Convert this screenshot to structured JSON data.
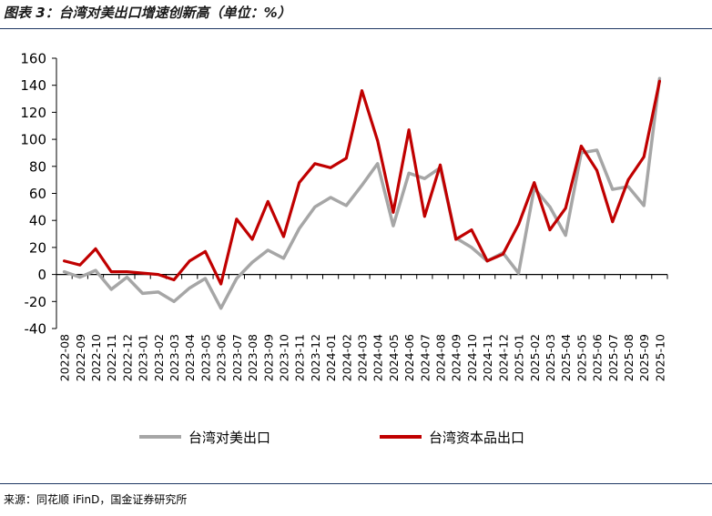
{
  "header": {
    "title": "图表 3：台湾对美出口增速创新高（单位：%）"
  },
  "footer": {
    "source": "来源：同花顺 iFinD，国金证券研究所"
  },
  "colors": {
    "us_exports": "#a6a6a6",
    "capital_goods": "#c00000",
    "axis": "#000000",
    "rule": "#1f3864"
  },
  "chart_data": {
    "type": "line",
    "title": "",
    "xlabel": "",
    "ylabel": "",
    "ylim": [
      -40,
      160
    ],
    "yticks": [
      -40,
      -20,
      0,
      20,
      40,
      60,
      80,
      100,
      120,
      140,
      160
    ],
    "grid": false,
    "legend_position": "bottom",
    "x": [
      "2022-08",
      "2022-09",
      "2022-10",
      "2022-11",
      "2022-12",
      "2023-01",
      "2023-02",
      "2023-03",
      "2023-04",
      "2023-05",
      "2023-06",
      "2023-07",
      "2023-08",
      "2023-09",
      "2023-10",
      "2023-11",
      "2023-12",
      "2024-01",
      "2024-02",
      "2024-03",
      "2024-04",
      "2024-05",
      "2024-06",
      "2024-07",
      "2024-08",
      "2024-09",
      "2024-10",
      "2024-11",
      "2024-12",
      "2025-01",
      "2025-02",
      "2025-03",
      "2025-04",
      "2025-05",
      "2025-06",
      "2025-07",
      "2025-08",
      "2025-09",
      "2025-10"
    ],
    "series": [
      {
        "name": "台湾对美出口",
        "color": "#a6a6a6",
        "values": [
          2,
          -2,
          3,
          -11,
          -2,
          -14,
          -13,
          -20,
          -10,
          -3,
          -25,
          -3,
          9,
          18,
          12,
          34,
          50,
          57,
          51,
          66,
          82,
          36,
          75,
          71,
          79,
          27,
          20,
          10,
          16,
          1,
          64,
          50,
          29,
          90,
          92,
          63,
          65,
          51,
          145
        ]
      },
      {
        "name": "台湾资本品出口",
        "color": "#c00000",
        "values": [
          10,
          7,
          19,
          2,
          2,
          1,
          0,
          -4,
          10,
          17,
          -7,
          41,
          26,
          54,
          28,
          68,
          82,
          79,
          86,
          136,
          99,
          46,
          107,
          43,
          81,
          26,
          33,
          10,
          15,
          37,
          68,
          33,
          49,
          95,
          77,
          39,
          70,
          87,
          143
        ]
      }
    ]
  }
}
